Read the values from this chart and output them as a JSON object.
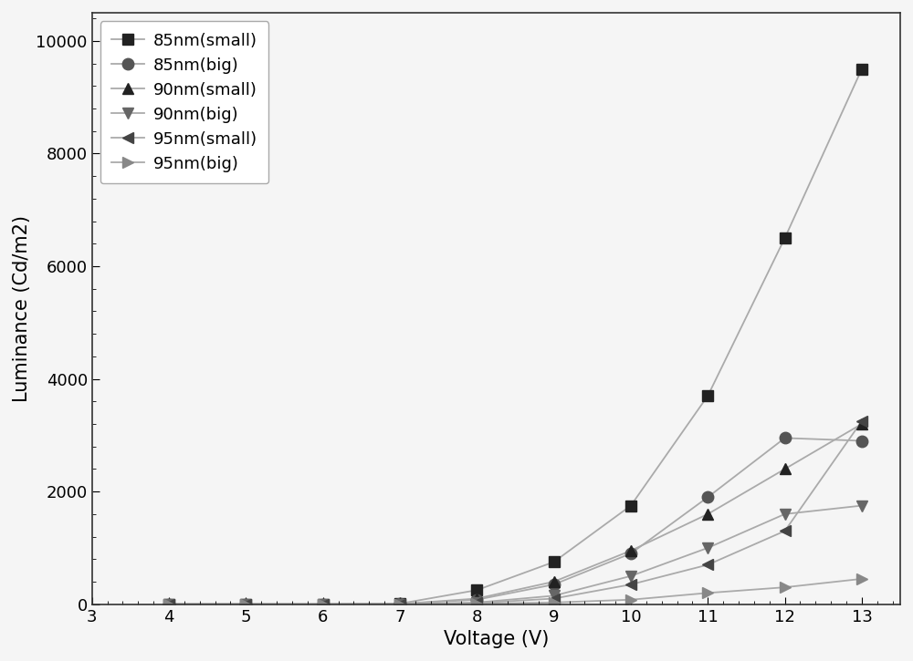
{
  "series": [
    {
      "label": "85nm(small)",
      "marker": "s",
      "color": "#222222",
      "x": [
        4,
        5,
        6,
        7,
        8,
        9,
        10,
        11,
        12,
        13
      ],
      "y": [
        0,
        0,
        0,
        10,
        250,
        750,
        1750,
        3700,
        6500,
        9500
      ]
    },
    {
      "label": "85nm(big)",
      "marker": "o",
      "color": "#555555",
      "x": [
        4,
        5,
        6,
        7,
        8,
        9,
        10,
        11,
        12,
        13
      ],
      "y": [
        0,
        0,
        0,
        5,
        80,
        350,
        900,
        1900,
        2950,
        2900
      ]
    },
    {
      "label": "90nm(small)",
      "marker": "^",
      "color": "#222222",
      "x": [
        4,
        5,
        6,
        7,
        8,
        9,
        10,
        11,
        12,
        13
      ],
      "y": [
        0,
        0,
        0,
        5,
        100,
        400,
        950,
        1600,
        2400,
        3200
      ]
    },
    {
      "label": "90nm(big)",
      "marker": "v",
      "color": "#666666",
      "x": [
        4,
        5,
        6,
        7,
        8,
        9,
        10,
        11,
        12,
        13
      ],
      "y": [
        0,
        0,
        0,
        0,
        30,
        150,
        500,
        1000,
        1600,
        1750
      ]
    },
    {
      "label": "95nm(small)",
      "marker": "<",
      "color": "#444444",
      "x": [
        4,
        5,
        6,
        7,
        8,
        9,
        10,
        11,
        12,
        13
      ],
      "y": [
        0,
        0,
        0,
        0,
        20,
        100,
        350,
        700,
        1300,
        3250
      ]
    },
    {
      "label": "95nm(big)",
      "marker": ">",
      "color": "#888888",
      "x": [
        4,
        5,
        6,
        7,
        8,
        9,
        10,
        11,
        12,
        13
      ],
      "y": [
        0,
        0,
        0,
        0,
        10,
        30,
        80,
        200,
        300,
        450
      ]
    }
  ],
  "xlabel": "Voltage (V)",
  "ylabel": "Luminance (Cd/m2)",
  "xlim": [
    3,
    13.5
  ],
  "ylim": [
    0,
    10500
  ],
  "xticks": [
    3,
    4,
    5,
    6,
    7,
    8,
    9,
    10,
    11,
    12,
    13
  ],
  "yticks": [
    0,
    2000,
    4000,
    6000,
    8000,
    10000
  ],
  "axis_fontsize": 15,
  "tick_fontsize": 13,
  "legend_fontsize": 13,
  "line_color": "#aaaaaa",
  "background_color": "#f5f5f5",
  "spine_color": "#333333",
  "markersize": 9
}
